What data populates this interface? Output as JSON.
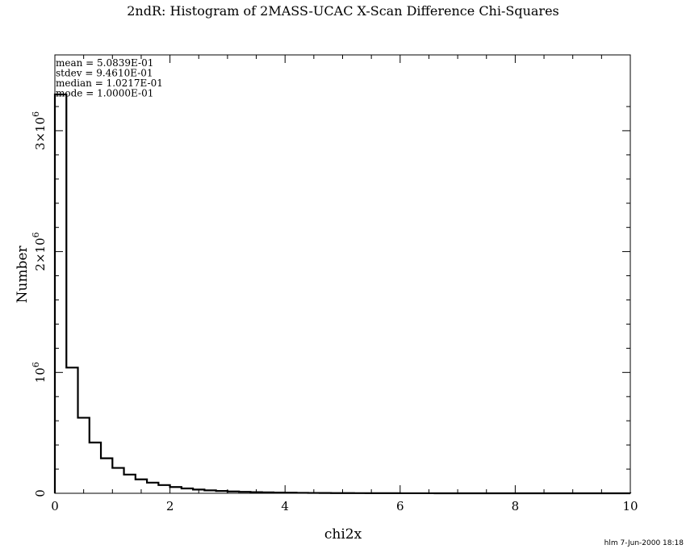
{
  "chart_data": {
    "type": "bar",
    "style": "step-histogram",
    "title": "2ndR: Histogram of 2MASS-UCAC X-Scan Difference Chi-Squares",
    "xlabel": "chi2x",
    "ylabel": "Number",
    "xlim": [
      0,
      10
    ],
    "ylim": [
      0,
      3300000
    ],
    "bin_width": 0.2,
    "bin_edges_start": 0,
    "values": [
      3300000,
      1040000,
      625000,
      420000,
      290000,
      210000,
      155000,
      115000,
      88000,
      68000,
      52000,
      40000,
      31000,
      24000,
      19000,
      15000,
      12000,
      9500,
      7500,
      6000,
      4800,
      3800,
      3000,
      2400,
      1900,
      1500,
      1200,
      950,
      750,
      600,
      480,
      380,
      300,
      240,
      190,
      150,
      120,
      95,
      75,
      60,
      48,
      38,
      30,
      24,
      19,
      15,
      12,
      10,
      8,
      6
    ],
    "x_major_ticks": [
      0,
      2,
      4,
      6,
      8,
      10
    ],
    "x_tick_labels": [
      "0",
      "2",
      "4",
      "6",
      "8",
      "10"
    ],
    "x_minor_step": 0.5,
    "y_major_ticks": [
      0,
      1000000,
      2000000,
      3000000
    ],
    "y_tick_labels": [
      {
        "base": "0",
        "exp": ""
      },
      {
        "base": "10",
        "exp": "6"
      },
      {
        "base": "2×10",
        "exp": "6"
      },
      {
        "base": "3×10",
        "exp": "6"
      }
    ],
    "y_minor_step": 200000,
    "annotations": [
      "mean =  5.0839E-01",
      "stdev =  9.4610E-01",
      "median =  1.0217E-01",
      "mode =  1.0000E-01"
    ],
    "footer": "hlm  7-Jun-2000 18:18",
    "grid": false,
    "legend": "none",
    "colors": {
      "line": "#000000",
      "background": "#ffffff"
    }
  }
}
